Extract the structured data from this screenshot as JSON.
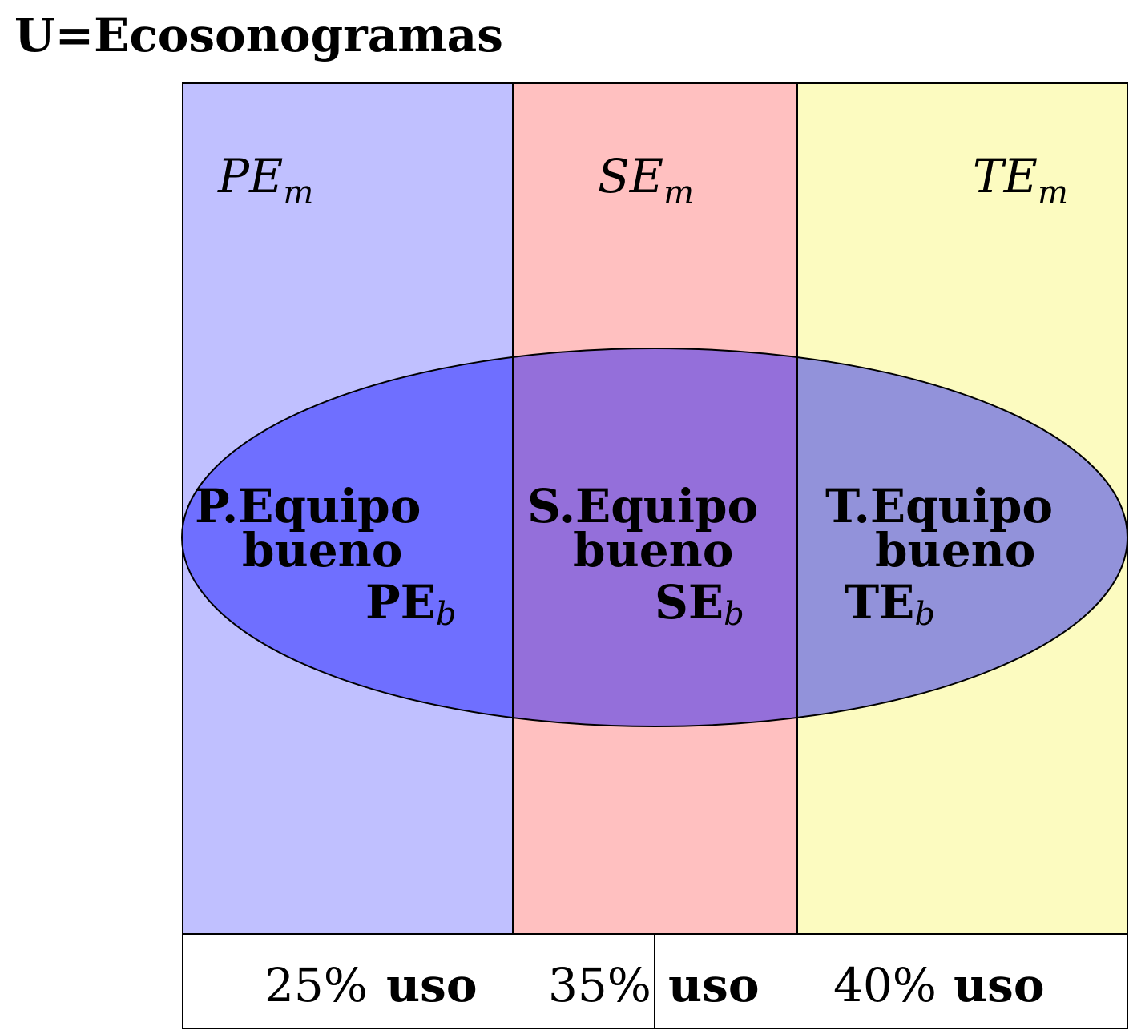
{
  "title": "U=Ecosonogramas",
  "colors": {
    "pe_region": "#c0c0ff",
    "se_region": "#ffc0c0",
    "te_region": "#fcfbc0",
    "ellipse": "#0000ff"
  },
  "regions": [
    {
      "name": "PE",
      "sub": "m",
      "group_line1": "P.Equipo",
      "group_line2": "bueno",
      "good_label": "PE",
      "good_sub": "b",
      "percent": "25%",
      "uso": "uso"
    },
    {
      "name": "SE",
      "sub": "m",
      "group_line1": "S.Equipo",
      "group_line2": "bueno",
      "good_label": "SE",
      "good_sub": "b",
      "percent": "35%",
      "uso": "uso"
    },
    {
      "name": "TE",
      "sub": "m",
      "group_line1": "T.Equipo",
      "group_line2": "bueno",
      "good_label": "TE",
      "good_sub": "b",
      "percent": "40%",
      "uso": "uso"
    }
  ]
}
